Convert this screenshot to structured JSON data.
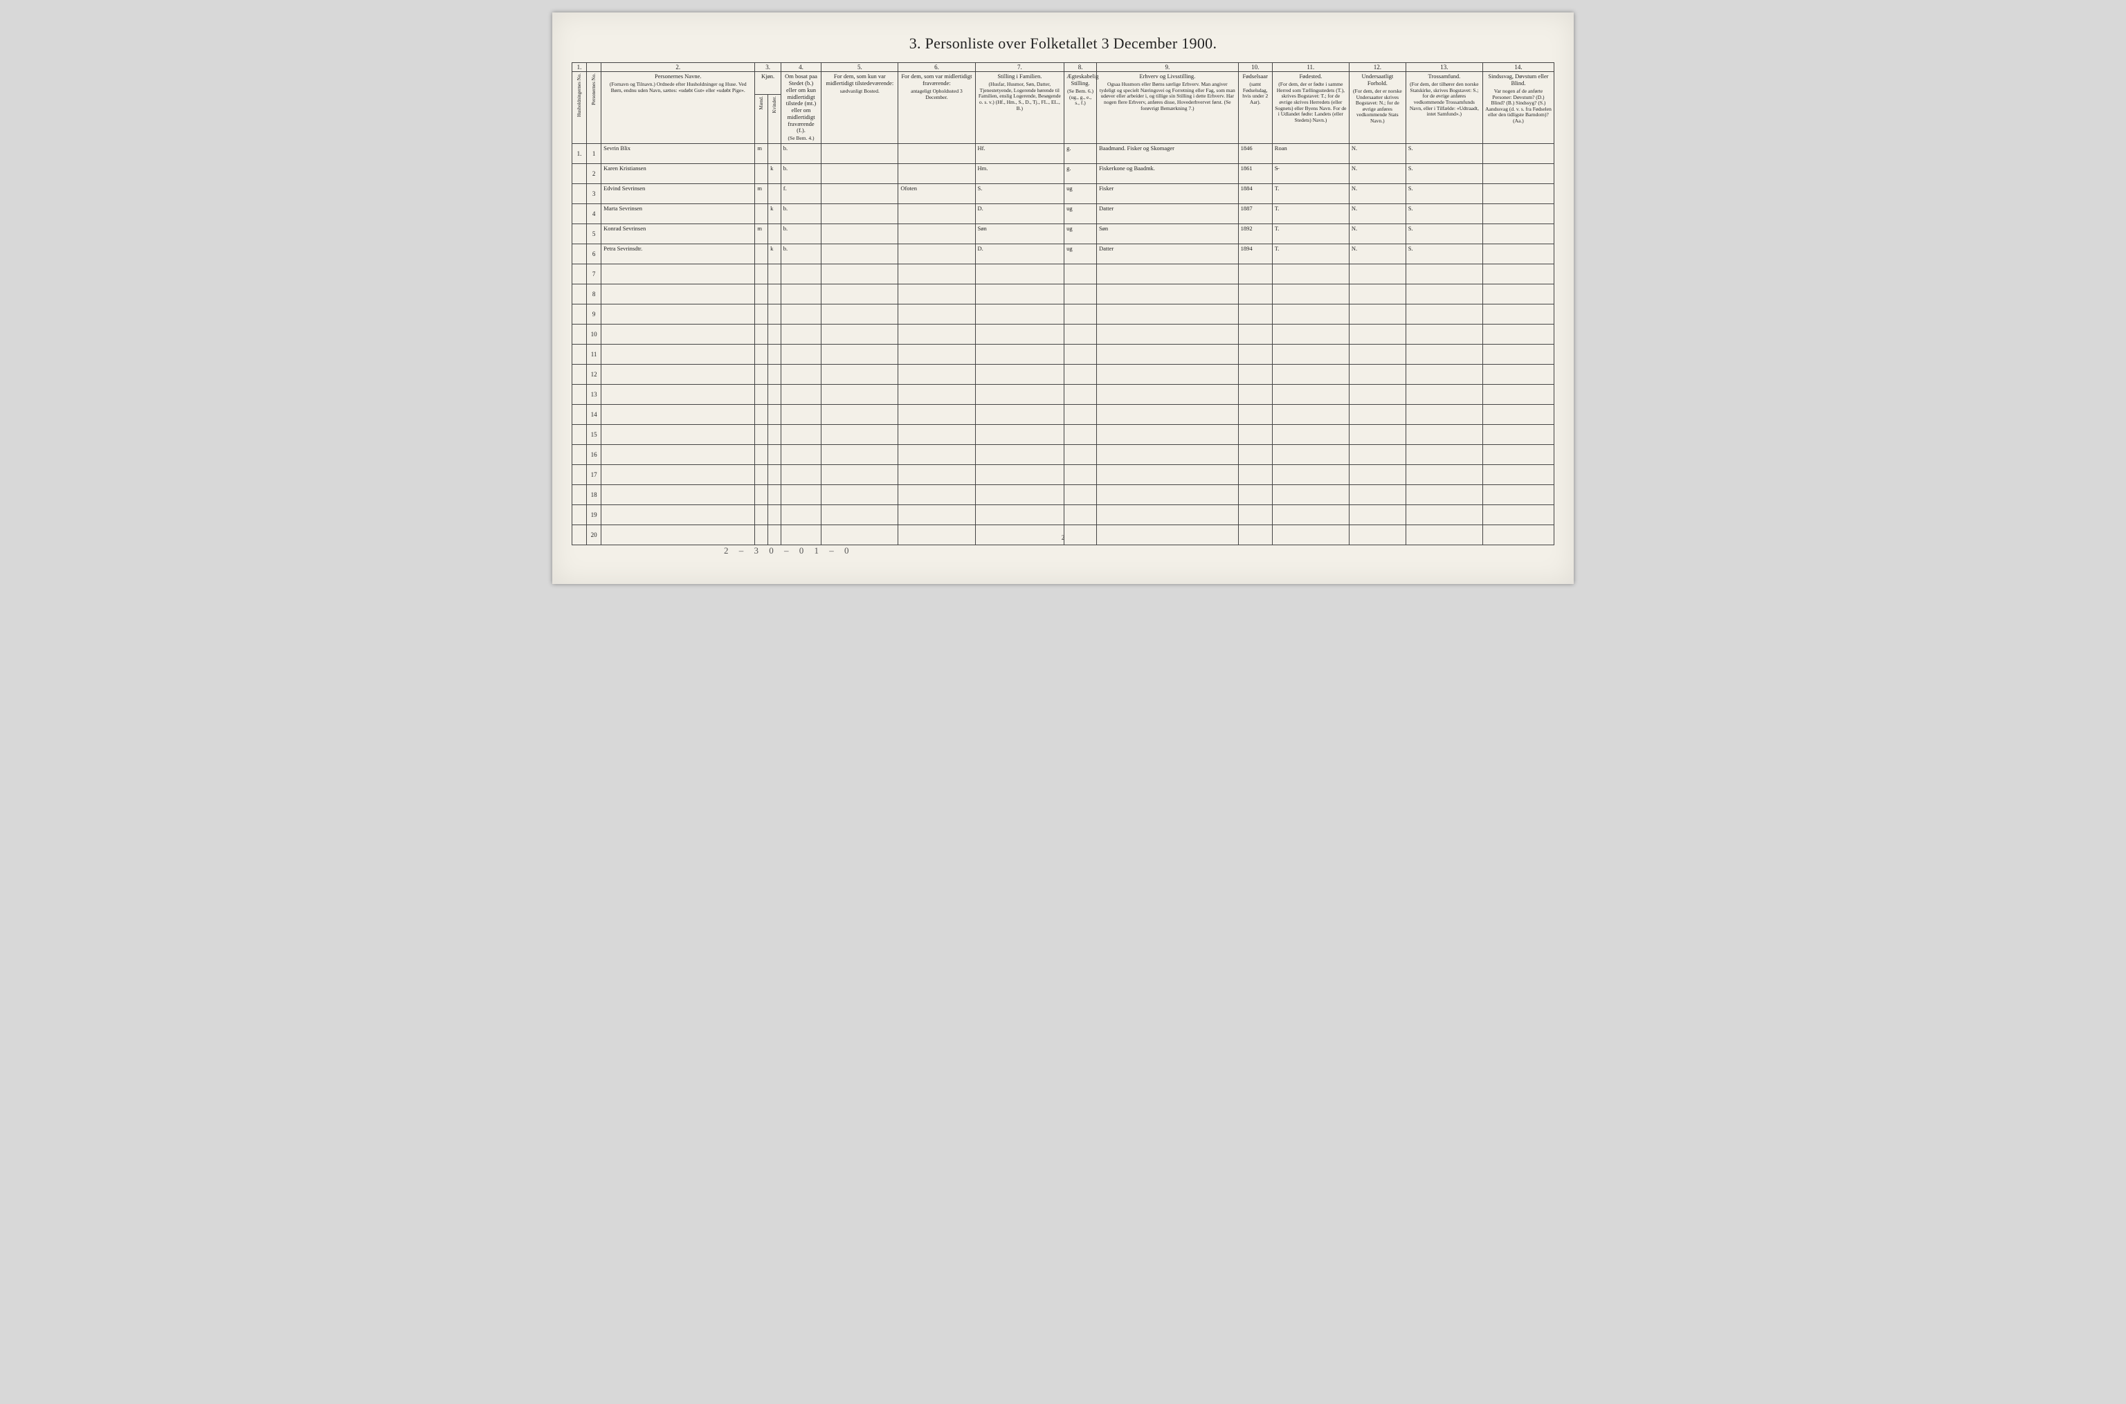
{
  "title": "3.  Personliste over Folketallet 3 December 1900.",
  "colnums": [
    "1.",
    "",
    "2.",
    "3.",
    "",
    "4.",
    "5.",
    "6.",
    "7.",
    "8.",
    "9.",
    "10.",
    "11.",
    "12.",
    "13.",
    "14."
  ],
  "headers": {
    "c1a": "Husholdningernes No.",
    "c1b": "Personernes No.",
    "c2_main": "Personernes Navne.",
    "c2_sub": "(Fornavn og Tilnavn.)\nOrdnede efter Husholdninger og Huse.\nVed Børn, endnu uden Navn, sættes: «udøbt Gut» eller «udøbt Pige».",
    "c3_main": "Kjøn.",
    "c3a": "Mænd.",
    "c3b": "Kvinder.",
    "c3_foot": "m.  k.",
    "c4_main": "Om bosat paa Stedet (b.) eller om kun midlertidigt tilstede (mt.) eller om midlertidigt fraværende (f.).",
    "c4_sub": "(Se Bem. 4.)",
    "c5_main": "For dem, som kun var midlertidigt tilstedeværende:",
    "c5_sub": "sædvanligt Bosted.",
    "c6_main": "For dem, som var midlertidigt fraværende:",
    "c6_sub": "antageligt Opholdssted 3 December.",
    "c7_main": "Stilling i Familien.",
    "c7_sub": "(Husfar, Husmor, Søn, Datter, Tjenestetyende, Logerende hørende til Familien, enslig Logerende, Besøgende o. s. v.)\n(Hf., Hm., S., D., Tj., FL., EL., B.)",
    "c8_main": "Ægteskabelig Stilling.",
    "c8_sub": "(Se Bem. 6.)\n(ug., g., e., s., f.)",
    "c9_main": "Erhverv og Livsstilling.",
    "c9_sub": "Ogsaa Husmors eller Børns særlige Erhverv. Man angiver tydeligt og specielt Næringsvei og Forretning eller Fag, som man udøver eller arbeider i, og tillige sin Stilling i dette Erhverv. Har nogen flere Erhverv, anføres disse, Hovederhvervet først.\n(Se forøvrigt Bemærkning 7.)",
    "c10_main": "Fødselsaar",
    "c10_sub": "(samt Fødselsdag, hvis under 2 Aar).",
    "c11_main": "Fødested.",
    "c11_sub": "(For dem, der er fødte i samme Herred som Tællingsstedets (T.), skrives Bogstavet: T.; for de øvrige skrives Herredets (eller Sognets) eller Byens Navn. For de i Udlandet fødte: Landets (eller Stedets) Navn.)",
    "c12_main": "Undersaatligt Forhold.",
    "c12_sub": "(For dem, der er norske Undersaatter skrives Bogstavet: N.; for de øvrige anføres vedkommende Stats Navn.)",
    "c13_main": "Trossamfund.",
    "c13_sub": "(For dem, der tilhører den norske Statskirke, skrives Bogstavet: S.; for de øvrige anføres vedkommende Trossamfunds Navn, eller i Tilfælde: «Udtraadt, intet Samfund».)",
    "c14_main": "Sindssvag, Døvstum eller Blind.",
    "c14_sub": "Var nogen af de anførte Personer:\nDøvstum?  (D.)\nBlind?  (B.)\nSindssyg?  (S.)\nAandssvag (d. v. s. fra Fødselen eller den tidligste Barndom)? (Aa.)"
  },
  "rows": [
    {
      "hh": "1.",
      "pn": "1",
      "name": "Sevrin Blix",
      "sex": "m",
      "res": "b.",
      "temp": "",
      "away": "",
      "fam": "Hf.",
      "mar": "g.",
      "occ": "Baadmand. Fisker og Skomager",
      "year": "1846",
      "birthplace": "Roan",
      "nat": "N.",
      "rel": "S.",
      "dis": ""
    },
    {
      "hh": "",
      "pn": "2",
      "name": "Karen Kristiansen",
      "sex": "k",
      "res": "b.",
      "temp": "",
      "away": "",
      "fam": "Hm.",
      "mar": "g.",
      "occ": "Fiskerkone og Baadmk.",
      "year": "1861",
      "birthplace": "S̶",
      "nat": "N.",
      "rel": "S.",
      "dis": ""
    },
    {
      "hh": "",
      "pn": "3",
      "name": "Edvind Sevrinsen",
      "sex": "m",
      "res": "f.",
      "temp": "",
      "away": "Ofoten",
      "fam": "S.",
      "mar": "ug",
      "occ": "Fisker",
      "year": "1884",
      "birthplace": "T.",
      "nat": "N.",
      "rel": "S.",
      "dis": ""
    },
    {
      "hh": "",
      "pn": "4",
      "name": "Marta Sevrinsen",
      "sex": "k",
      "res": "b.",
      "temp": "",
      "away": "",
      "fam": "D.",
      "mar": "ug",
      "occ": "Datter",
      "year": "1887",
      "birthplace": "T.",
      "nat": "N.",
      "rel": "S.",
      "dis": ""
    },
    {
      "hh": "",
      "pn": "5",
      "name": "Konrad Sevrinsen",
      "sex": "m",
      "res": "b.",
      "temp": "",
      "away": "",
      "fam": "Søn",
      "mar": "ug",
      "occ": "Søn",
      "year": "1892",
      "birthplace": "T.",
      "nat": "N.",
      "rel": "S.",
      "dis": ""
    },
    {
      "hh": "",
      "pn": "6",
      "name": "Petra Sevrinsdtr.",
      "sex": "k",
      "res": "b.",
      "temp": "",
      "away": "",
      "fam": "D.",
      "mar": "ug",
      "occ": "Datter",
      "year": "1894",
      "birthplace": "T.",
      "nat": "N.",
      "rel": "S.",
      "dis": ""
    }
  ],
  "empty_rows": 14,
  "bottom_note": "2 – 3     0 – 0     1 – 0",
  "page_number": "2",
  "colors": {
    "page_bg": "#f3f0e8",
    "outer_bg": "#d8d8d8",
    "rule": "#444444",
    "ink": "#232323",
    "script": "#3a3a3a"
  }
}
